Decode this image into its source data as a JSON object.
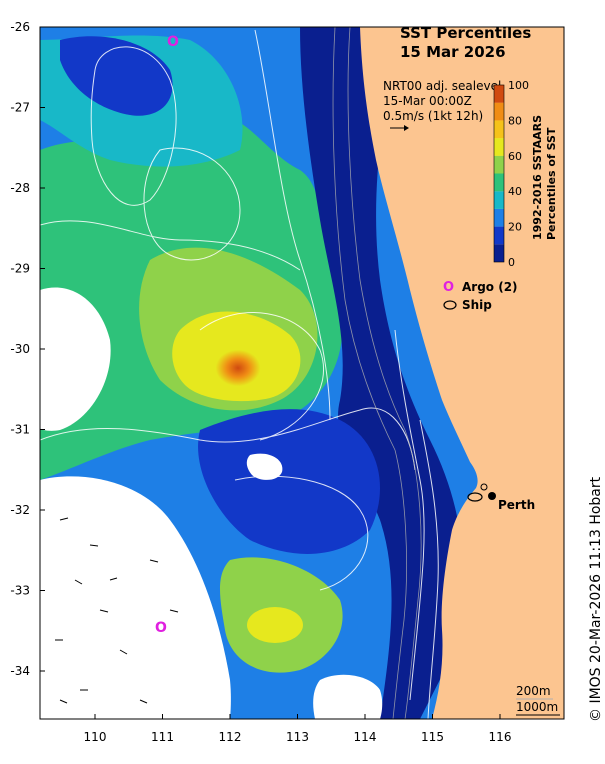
{
  "title": {
    "line1": "SST Percentiles",
    "line2": "15 Mar 2026"
  },
  "current_info": {
    "line1": "NRT00 adj. sealevel",
    "line2": "15-Mar 00:00Z",
    "line3": "0.5m/s (1kt 12h)"
  },
  "colorbar": {
    "title_line1": "1992-2016 SSTAARS",
    "title_line2": "Percentiles of SST",
    "tick_labels": [
      "0",
      "20",
      "40",
      "60",
      "80",
      "100"
    ],
    "levels": [
      {
        "value": 0,
        "color": "#0a1f8f"
      },
      {
        "value": 10,
        "color": "#1238c8"
      },
      {
        "value": 20,
        "color": "#1e7fe6"
      },
      {
        "value": 30,
        "color": "#18b8c8"
      },
      {
        "value": 40,
        "color": "#2ec27a"
      },
      {
        "value": 50,
        "color": "#8fd24a"
      },
      {
        "value": 60,
        "color": "#e6e81e"
      },
      {
        "value": 70,
        "color": "#f5c21a"
      },
      {
        "value": 80,
        "color": "#f08c14"
      },
      {
        "value": 90,
        "color": "#d04a10"
      },
      {
        "value": 100,
        "color": "#9e0f0f"
      }
    ]
  },
  "legend": {
    "argo_symbol": "O",
    "argo_label": "Argo (2)",
    "ship_label": "Ship"
  },
  "place_label": "Perth",
  "depth_labels": {
    "shallow": "200m",
    "deep": "1000m"
  },
  "y_axis_labels": [
    "-26",
    "-27",
    "-28",
    "-29",
    "-30",
    "-31",
    "-32",
    "-33",
    "-34"
  ],
  "x_axis_labels": [
    "110",
    "111",
    "112",
    "113",
    "114",
    "115",
    "116"
  ],
  "credit": "© IMOS 20-Mar-2026 11:13 Hobart",
  "colors": {
    "land": "#fcc590",
    "argo": "#e020e0",
    "contour": "#ffffff",
    "frame": "#000000"
  }
}
